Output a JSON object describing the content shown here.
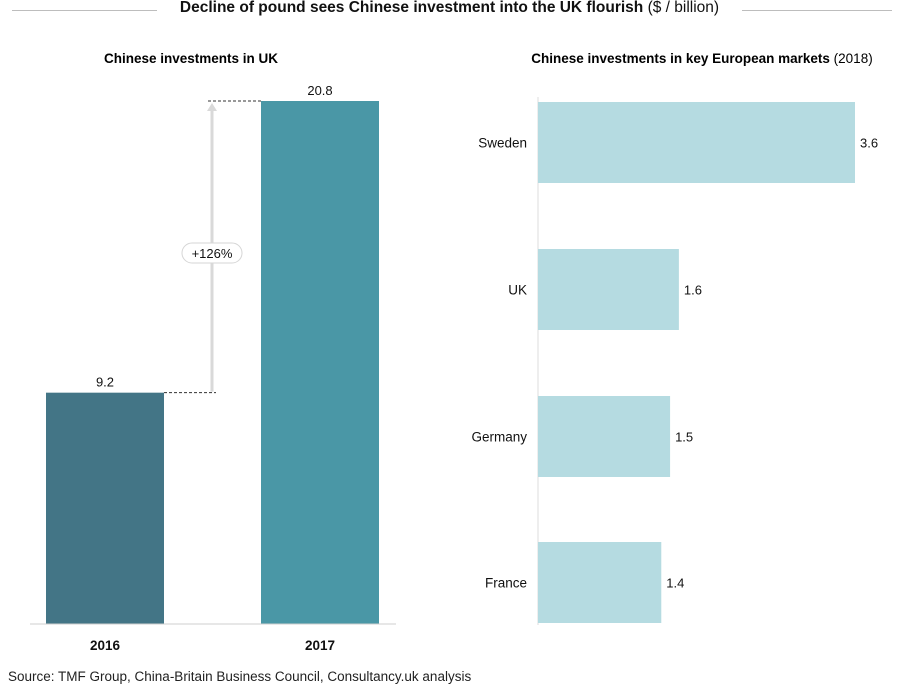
{
  "title": {
    "bold": "Decline of pound sees Chinese investment into the UK flourish",
    "unit": "($ / billion)"
  },
  "chart_data": [
    {
      "type": "bar",
      "title": "Chinese investments in UK",
      "categories": [
        "2016",
        "2017"
      ],
      "values": [
        9.2,
        20.8
      ],
      "value_labels": [
        "9.2",
        "20.8"
      ],
      "colors": [
        "#437586",
        "#4a97a6"
      ],
      "annotation": "+126%",
      "ylim": [
        0,
        20.8
      ],
      "grid": false,
      "legend": "none"
    },
    {
      "type": "bar",
      "orientation": "horizontal",
      "title": "Chinese investments in key European markets",
      "title_suffix": "(2018)",
      "categories": [
        "Sweden",
        "UK",
        "Germany",
        "France"
      ],
      "values": [
        3.6,
        1.6,
        1.5,
        1.4
      ],
      "value_labels": [
        "3.6",
        "1.6",
        "1.5",
        "1.4"
      ],
      "color": "#b5dbe1",
      "xlim": [
        0,
        3.6
      ],
      "grid": false,
      "legend": "none"
    }
  ],
  "source": "Source: TMF Group, China-Britain Business Council, Consultancy.uk analysis"
}
